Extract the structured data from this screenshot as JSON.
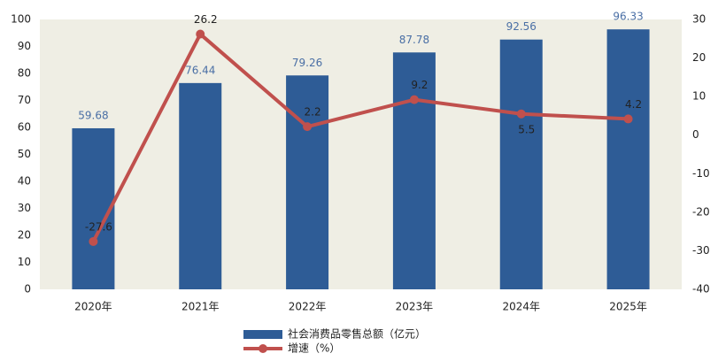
{
  "chart_data": {
    "type": "bar",
    "categories": [
      "2020年",
      "2021年",
      "2022年",
      "2023年",
      "2024年",
      "2025年"
    ],
    "series": [
      {
        "name": "社会消费品零售总额（亿元）",
        "type": "bar",
        "color": "#2e5c96",
        "label_color": "#4a6fa5",
        "values": [
          59.68,
          76.44,
          79.26,
          87.78,
          92.56,
          96.33
        ]
      },
      {
        "name": "增速（%）",
        "type": "line",
        "axis": "y2",
        "color": "#c0504d",
        "values": [
          -27.6,
          26.2,
          2.2,
          9.2,
          5.5,
          4.2
        ]
      }
    ],
    "ylim": [
      0,
      100
    ],
    "yticks": [
      0,
      10,
      20,
      30,
      40,
      50,
      60,
      70,
      80,
      90,
      100
    ],
    "y2lim": [
      -40,
      30
    ],
    "y2ticks": [
      -40,
      -30,
      -20,
      -10,
      0,
      10,
      20,
      30
    ],
    "plot_background": "#efeee4",
    "legend": "bottom"
  }
}
